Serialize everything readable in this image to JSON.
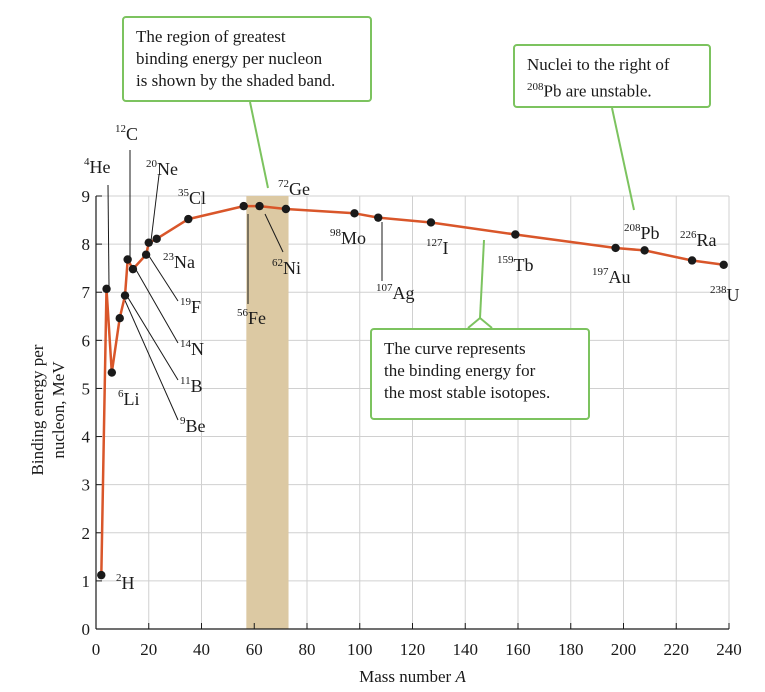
{
  "chart_data": {
    "type": "line",
    "title": "",
    "xlabel": "Mass number",
    "xlabel_var": "A",
    "ylabel_line1": "Binding energy per",
    "ylabel_line2": "nucleon, MeV",
    "xlim": [
      0,
      240
    ],
    "ylim": [
      0,
      9
    ],
    "x_ticks": [
      "0",
      "20",
      "40",
      "60",
      "80",
      "100",
      "120",
      "140",
      "160",
      "180",
      "200",
      "220",
      "240"
    ],
    "y_ticks": [
      "0",
      "1",
      "2",
      "3",
      "4",
      "5",
      "6",
      "7",
      "8",
      "9"
    ],
    "grid": true,
    "shaded_band": {
      "from": 57,
      "to": 73,
      "color": "#dcc9a3"
    },
    "curve_color": "#d9562a",
    "point_color": "#1a1a1a",
    "curve": [
      [
        2,
        1.1
      ],
      [
        4,
        7.07
      ],
      [
        6,
        5.33
      ],
      [
        9,
        6.46
      ],
      [
        11,
        6.93
      ],
      [
        12,
        7.68
      ],
      [
        14,
        7.48
      ],
      [
        19,
        7.78
      ],
      [
        20,
        8.03
      ],
      [
        23,
        8.11
      ],
      [
        35,
        8.52
      ],
      [
        56,
        8.79
      ],
      [
        62,
        8.79
      ],
      [
        72,
        8.73
      ],
      [
        98,
        8.64
      ],
      [
        107,
        8.55
      ],
      [
        127,
        8.45
      ],
      [
        159,
        8.2
      ],
      [
        197,
        7.92
      ],
      [
        208,
        7.87
      ],
      [
        226,
        7.66
      ],
      [
        238,
        7.57
      ]
    ],
    "points": [
      {
        "mass": "2",
        "symbol": "H",
        "x": 2,
        "y": 1.12
      },
      {
        "mass": "4",
        "symbol": "He",
        "x": 4,
        "y": 7.07
      },
      {
        "mass": "6",
        "symbol": "Li",
        "x": 6,
        "y": 5.33
      },
      {
        "mass": "9",
        "symbol": "Be",
        "x": 9,
        "y": 6.46
      },
      {
        "mass": "11",
        "symbol": "B",
        "x": 11,
        "y": 6.93
      },
      {
        "mass": "12",
        "symbol": "C",
        "x": 12,
        "y": 7.68
      },
      {
        "mass": "14",
        "symbol": "N",
        "x": 14,
        "y": 7.48
      },
      {
        "mass": "19",
        "symbol": "F",
        "x": 19,
        "y": 7.78
      },
      {
        "mass": "20",
        "symbol": "Ne",
        "x": 20,
        "y": 8.03
      },
      {
        "mass": "23",
        "symbol": "Na",
        "x": 23,
        "y": 8.11
      },
      {
        "mass": "35",
        "symbol": "Cl",
        "x": 35,
        "y": 8.52
      },
      {
        "mass": "56",
        "symbol": "Fe",
        "x": 56,
        "y": 8.79
      },
      {
        "mass": "62",
        "symbol": "Ni",
        "x": 62,
        "y": 8.79
      },
      {
        "mass": "72",
        "symbol": "Ge",
        "x": 72,
        "y": 8.73
      },
      {
        "mass": "98",
        "symbol": "Mo",
        "x": 98,
        "y": 8.64
      },
      {
        "mass": "107",
        "symbol": "Ag",
        "x": 107,
        "y": 8.55
      },
      {
        "mass": "127",
        "symbol": "I",
        "x": 127,
        "y": 8.45
      },
      {
        "mass": "159",
        "symbol": "Tb",
        "x": 159,
        "y": 8.2
      },
      {
        "mass": "197",
        "symbol": "Au",
        "x": 197,
        "y": 7.92
      },
      {
        "mass": "208",
        "symbol": "Pb",
        "x": 208,
        "y": 7.87
      },
      {
        "mass": "226",
        "symbol": "Ra",
        "x": 226,
        "y": 7.66
      },
      {
        "mass": "238",
        "symbol": "U",
        "x": 238,
        "y": 7.57
      }
    ],
    "annotations": [
      {
        "text": "The region of greatest binding energy per nucleon is shown by the shaded band.",
        "lines": [
          "The region of greatest",
          "binding energy per nucleon",
          "is shown by the shaded band."
        ]
      },
      {
        "lines_html": [
          "Nuclei to the right of",
          "<sup>208</sup>Pb are unstable."
        ],
        "text": "Nuclei to the right of 208Pb are unstable."
      },
      {
        "text": "The curve represents the binding energy for the most stable isotopes.",
        "lines": [
          "The curve represents",
          "the binding energy for",
          "the most stable isotopes."
        ]
      }
    ],
    "callout_border_color": "#7cc35f"
  }
}
